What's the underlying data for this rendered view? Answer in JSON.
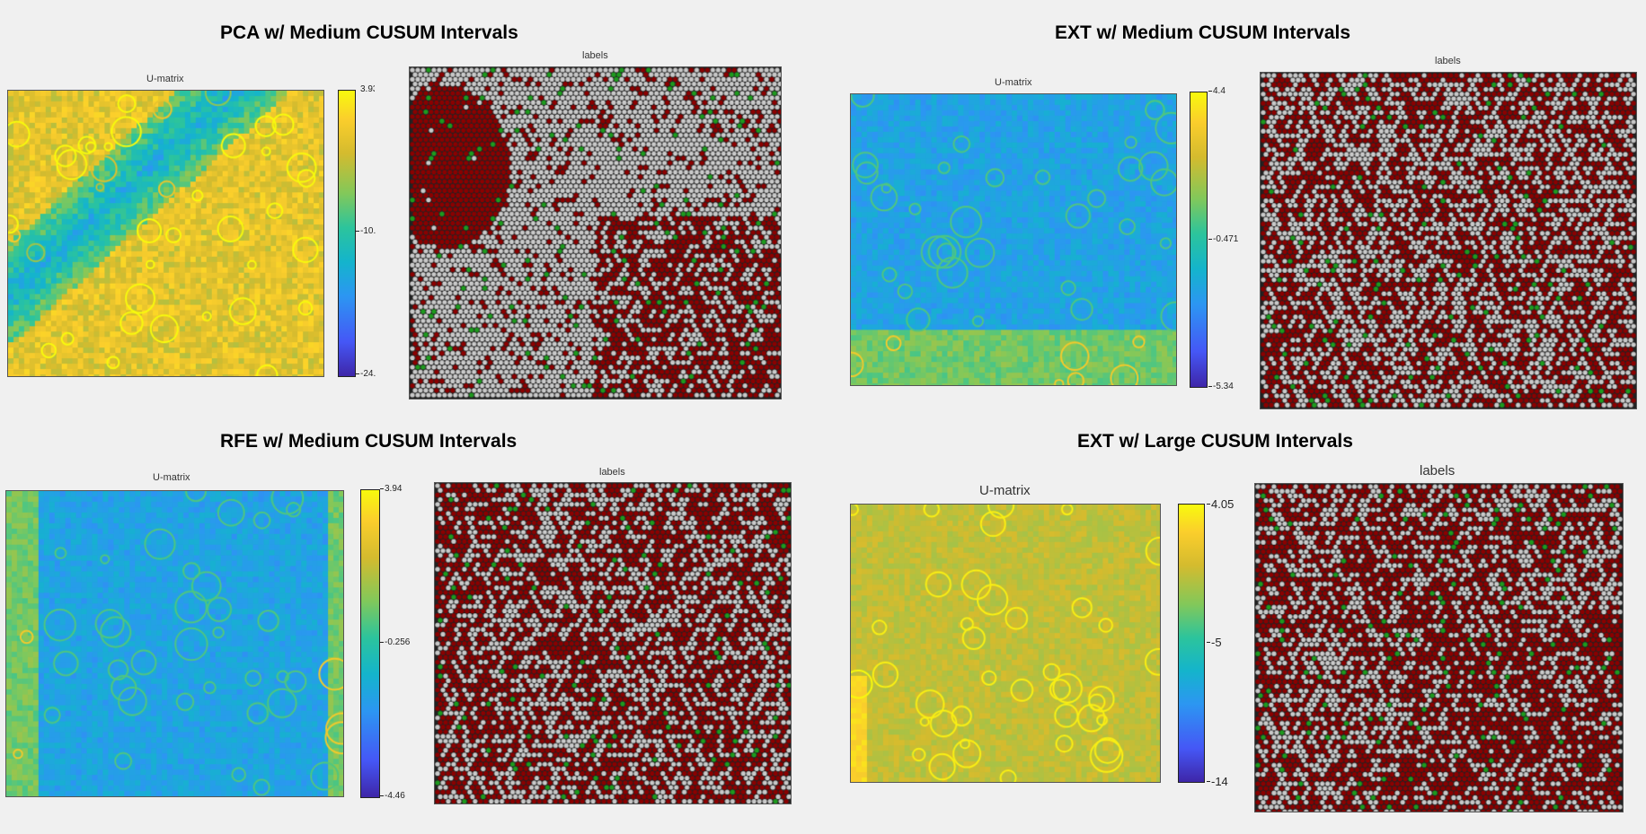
{
  "chart_data": [
    {
      "type": "heatmap",
      "title": "PCA  w/ Medium CUSUM Intervals",
      "subplots": [
        {
          "title": "U-matrix",
          "colorbar_ticks": [
            "3.93",
            "-10.",
            "-24."
          ],
          "colorbar_range": [
            -24,
            3.93
          ]
        },
        {
          "title": "labels",
          "classes": [
            "dark red",
            "gray",
            "green"
          ]
        }
      ]
    },
    {
      "type": "heatmap",
      "title": "EXT  w/ Medium CUSUM Intervals",
      "subplots": [
        {
          "title": "U-matrix",
          "colorbar_ticks": [
            "4.4",
            "-0.471",
            "-5.34"
          ],
          "colorbar_range": [
            -5.34,
            4.4
          ]
        },
        {
          "title": "labels",
          "classes": [
            "dark red",
            "gray",
            "green"
          ]
        }
      ]
    },
    {
      "type": "heatmap",
      "title": "RFE  w/ Medium CUSUM Intervals",
      "subplots": [
        {
          "title": "U-matrix",
          "colorbar_ticks": [
            "3.94",
            "-0.256",
            "-4.46"
          ],
          "colorbar_range": [
            -4.46,
            3.94
          ]
        },
        {
          "title": "labels",
          "classes": [
            "dark red",
            "gray",
            "green"
          ]
        }
      ]
    },
    {
      "type": "heatmap",
      "title": "EXT  w/ Large CUSUM Intervals",
      "subplots": [
        {
          "title": "U-matrix",
          "colorbar_ticks": [
            "4.05",
            "-5",
            "-14"
          ],
          "colorbar_range": [
            -14,
            4.05
          ]
        },
        {
          "title": "labels",
          "classes": [
            "dark red",
            "gray",
            "green"
          ]
        }
      ]
    }
  ],
  "colors": {
    "label_red": "#8b0000",
    "label_gray": "#c8c8c8",
    "label_green": "#1e9a1e",
    "background": "#f0f0f0"
  }
}
